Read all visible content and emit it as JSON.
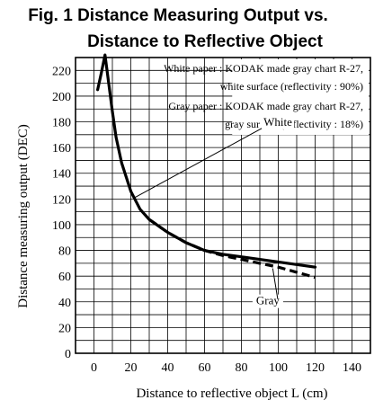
{
  "title_line1": "Fig. 1 Distance Measuring Output vs.",
  "title_line2": "Distance to Reflective Object",
  "chart_data": {
    "type": "line",
    "xlabel": "Distance to reflective object L (cm)",
    "ylabel": "Distance measuring output (DEC)",
    "xlim": [
      -10,
      150
    ],
    "ylim": [
      0,
      230
    ],
    "xticks": [
      0,
      20,
      40,
      60,
      80,
      100,
      120,
      140
    ],
    "yticks": [
      0,
      20,
      40,
      60,
      80,
      100,
      120,
      140,
      160,
      180,
      200,
      220
    ],
    "grid": true,
    "legend_note": [
      "White paper : KODAK made gray chart R-27,",
      "white surface (reflectivity : 90%)",
      "Gray paper : KODAK made gray chart R-27,",
      "gray surface (reflectivity : 18%)"
    ],
    "series": [
      {
        "name": "White",
        "style": "solid",
        "x": [
          2,
          4,
          6,
          8,
          10,
          12,
          15,
          20,
          25,
          30,
          40,
          50,
          60,
          70,
          80,
          90,
          100,
          110,
          120
        ],
        "y": [
          205,
          218,
          232,
          210,
          188,
          168,
          148,
          126,
          112,
          104,
          94,
          86,
          80,
          77,
          75,
          73,
          71,
          69,
          67
        ]
      },
      {
        "name": "Gray",
        "style": "dashed",
        "x": [
          30,
          40,
          50,
          60,
          70,
          80,
          90,
          100,
          110,
          120
        ],
        "y": [
          104,
          94,
          86,
          80,
          76,
          73,
          70,
          67,
          63,
          59
        ]
      }
    ],
    "annotations": [
      {
        "text": "White",
        "x": 92,
        "y": 177
      },
      {
        "text": "Gray",
        "x": 88,
        "y": 38
      }
    ]
  }
}
